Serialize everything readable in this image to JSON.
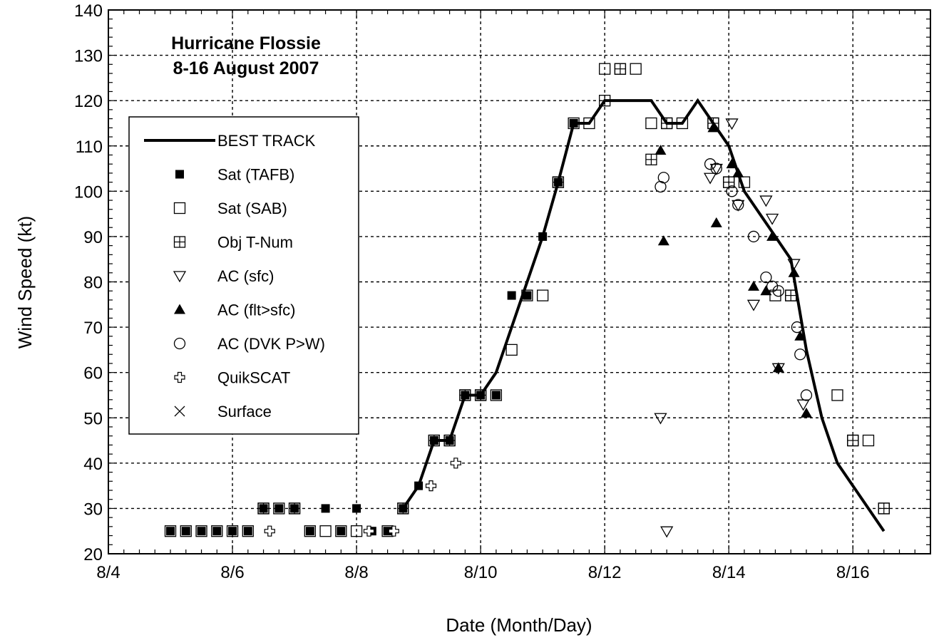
{
  "chart_data": {
    "type": "scatter",
    "title": "Hurricane Flossie",
    "subtitle": "8-16 August 2007",
    "xlabel": "Date (Month/Day)",
    "ylabel": "Wind Speed (kt)",
    "xlim": [
      4,
      17.25
    ],
    "ylim": [
      20,
      140
    ],
    "x_ticks": [
      4,
      6,
      8,
      10,
      12,
      14,
      16
    ],
    "x_tick_labels": [
      "8/4",
      "8/6",
      "8/8",
      "8/10",
      "8/12",
      "8/14",
      "8/16"
    ],
    "y_ticks": [
      20,
      30,
      40,
      50,
      60,
      70,
      80,
      90,
      100,
      110,
      120,
      130,
      140
    ],
    "y_tick_labels": [
      "20",
      "30",
      "40",
      "50",
      "60",
      "70",
      "80",
      "90",
      "100",
      "110",
      "120",
      "130",
      "140"
    ],
    "grid": true,
    "legend_position": "left",
    "series": [
      {
        "name": "BEST TRACK",
        "marker": "line",
        "points": [
          [
            8.75,
            30
          ],
          [
            9,
            35
          ],
          [
            9.25,
            45
          ],
          [
            9.5,
            45
          ],
          [
            9.75,
            55
          ],
          [
            10,
            55
          ],
          [
            10.25,
            60
          ],
          [
            11,
            90
          ],
          [
            11.25,
            102
          ],
          [
            11.5,
            115
          ],
          [
            11.75,
            115
          ],
          [
            12,
            120
          ],
          [
            12.75,
            120
          ],
          [
            13,
            115
          ],
          [
            13.25,
            115
          ],
          [
            13.5,
            120
          ],
          [
            13.75,
            115
          ],
          [
            14,
            110
          ],
          [
            14.25,
            100
          ],
          [
            14.75,
            90
          ],
          [
            15,
            85
          ],
          [
            15.25,
            65
          ],
          [
            15.5,
            50
          ],
          [
            15.75,
            40
          ],
          [
            16,
            35
          ],
          [
            16.25,
            30
          ],
          [
            16.5,
            25
          ]
        ]
      },
      {
        "name": "Sat (TAFB)",
        "marker": "filled-square",
        "points": [
          [
            5,
            25
          ],
          [
            5.25,
            25
          ],
          [
            5.5,
            25
          ],
          [
            5.75,
            25
          ],
          [
            6,
            25
          ],
          [
            6.25,
            25
          ],
          [
            6.5,
            30
          ],
          [
            6.75,
            30
          ],
          [
            7,
            30
          ],
          [
            7.25,
            25
          ],
          [
            7.5,
            30
          ],
          [
            7.75,
            25
          ],
          [
            8,
            30
          ],
          [
            8.25,
            25
          ],
          [
            8.5,
            25
          ],
          [
            8.75,
            30
          ],
          [
            9,
            35
          ],
          [
            9.25,
            45
          ],
          [
            9.5,
            45
          ],
          [
            9.75,
            55
          ],
          [
            10,
            55
          ],
          [
            10.25,
            55
          ],
          [
            10.5,
            77
          ],
          [
            10.75,
            77
          ],
          [
            11,
            90
          ],
          [
            11.25,
            102
          ],
          [
            11.5,
            115
          ]
        ]
      },
      {
        "name": "Sat (SAB)",
        "marker": "open-square",
        "points": [
          [
            5,
            25
          ],
          [
            5.25,
            25
          ],
          [
            5.5,
            25
          ],
          [
            5.75,
            25
          ],
          [
            6,
            25
          ],
          [
            6.25,
            25
          ],
          [
            6.5,
            30
          ],
          [
            6.75,
            30
          ],
          [
            7,
            30
          ],
          [
            7.25,
            25
          ],
          [
            7.5,
            25
          ],
          [
            7.75,
            25
          ],
          [
            8,
            25
          ],
          [
            8.5,
            25
          ],
          [
            8.75,
            30
          ],
          [
            9.25,
            45
          ],
          [
            9.5,
            45
          ],
          [
            9.75,
            55
          ],
          [
            10,
            55
          ],
          [
            10.25,
            55
          ],
          [
            10.5,
            65
          ],
          [
            10.75,
            77
          ],
          [
            11,
            77
          ],
          [
            11.25,
            102
          ],
          [
            11.5,
            115
          ],
          [
            11.75,
            115
          ],
          [
            12,
            127
          ],
          [
            12.25,
            127
          ],
          [
            12.5,
            127
          ],
          [
            12.75,
            115
          ],
          [
            13,
            115
          ],
          [
            13.25,
            115
          ],
          [
            13.75,
            115
          ],
          [
            14,
            102
          ],
          [
            14.25,
            102
          ],
          [
            14.75,
            77
          ],
          [
            15,
            77
          ],
          [
            15.75,
            55
          ],
          [
            16,
            45
          ],
          [
            16.25,
            45
          ],
          [
            16.5,
            30
          ]
        ]
      },
      {
        "name": "Obj T-Num",
        "marker": "open-square-plus",
        "points": [
          [
            6.5,
            30
          ],
          [
            7,
            30
          ],
          [
            8.75,
            30
          ],
          [
            9.25,
            45
          ],
          [
            9.5,
            45
          ],
          [
            9.75,
            55
          ],
          [
            10,
            55
          ],
          [
            11.25,
            102
          ],
          [
            12,
            120
          ],
          [
            12.25,
            127
          ],
          [
            12.75,
            107
          ],
          [
            13,
            115
          ],
          [
            13.75,
            115
          ],
          [
            14,
            102
          ],
          [
            15,
            77
          ],
          [
            16,
            45
          ],
          [
            16.5,
            30
          ]
        ]
      },
      {
        "name": "AC (sfc)",
        "marker": "open-triangle-down",
        "points": [
          [
            12.9,
            50
          ],
          [
            13,
            25
          ],
          [
            13.7,
            103
          ],
          [
            13.8,
            105
          ],
          [
            14.05,
            115
          ],
          [
            14.15,
            97
          ],
          [
            14.4,
            75
          ],
          [
            14.6,
            98
          ],
          [
            14.7,
            94
          ],
          [
            14.8,
            61
          ],
          [
            15.05,
            84
          ],
          [
            15.2,
            53
          ]
        ]
      },
      {
        "name": "AC (flt>sfc)",
        "marker": "filled-triangle-up",
        "points": [
          [
            12.9,
            109
          ],
          [
            12.95,
            89
          ],
          [
            13.75,
            114
          ],
          [
            13.8,
            93
          ],
          [
            14.05,
            106
          ],
          [
            14.15,
            104
          ],
          [
            14.4,
            79
          ],
          [
            14.6,
            78
          ],
          [
            14.7,
            90
          ],
          [
            14.8,
            61
          ],
          [
            15.05,
            82
          ],
          [
            15.15,
            68
          ],
          [
            15.25,
            51
          ]
        ]
      },
      {
        "name": "AC (DVK P>W)",
        "marker": "open-circle",
        "points": [
          [
            12.9,
            101
          ],
          [
            12.95,
            103
          ],
          [
            13.7,
            106
          ],
          [
            13.8,
            105
          ],
          [
            14.05,
            100
          ],
          [
            14.15,
            97
          ],
          [
            14.4,
            90
          ],
          [
            14.6,
            81
          ],
          [
            14.7,
            79
          ],
          [
            14.8,
            78
          ],
          [
            15.1,
            70
          ],
          [
            15.15,
            64
          ],
          [
            15.25,
            55
          ]
        ]
      },
      {
        "name": "QuikSCAT",
        "marker": "open-cross",
        "points": [
          [
            6.6,
            25
          ],
          [
            8.2,
            25
          ],
          [
            8.6,
            25
          ],
          [
            9.2,
            35
          ],
          [
            9.6,
            40
          ]
        ]
      },
      {
        "name": "Surface",
        "marker": "x",
        "points": []
      }
    ]
  }
}
